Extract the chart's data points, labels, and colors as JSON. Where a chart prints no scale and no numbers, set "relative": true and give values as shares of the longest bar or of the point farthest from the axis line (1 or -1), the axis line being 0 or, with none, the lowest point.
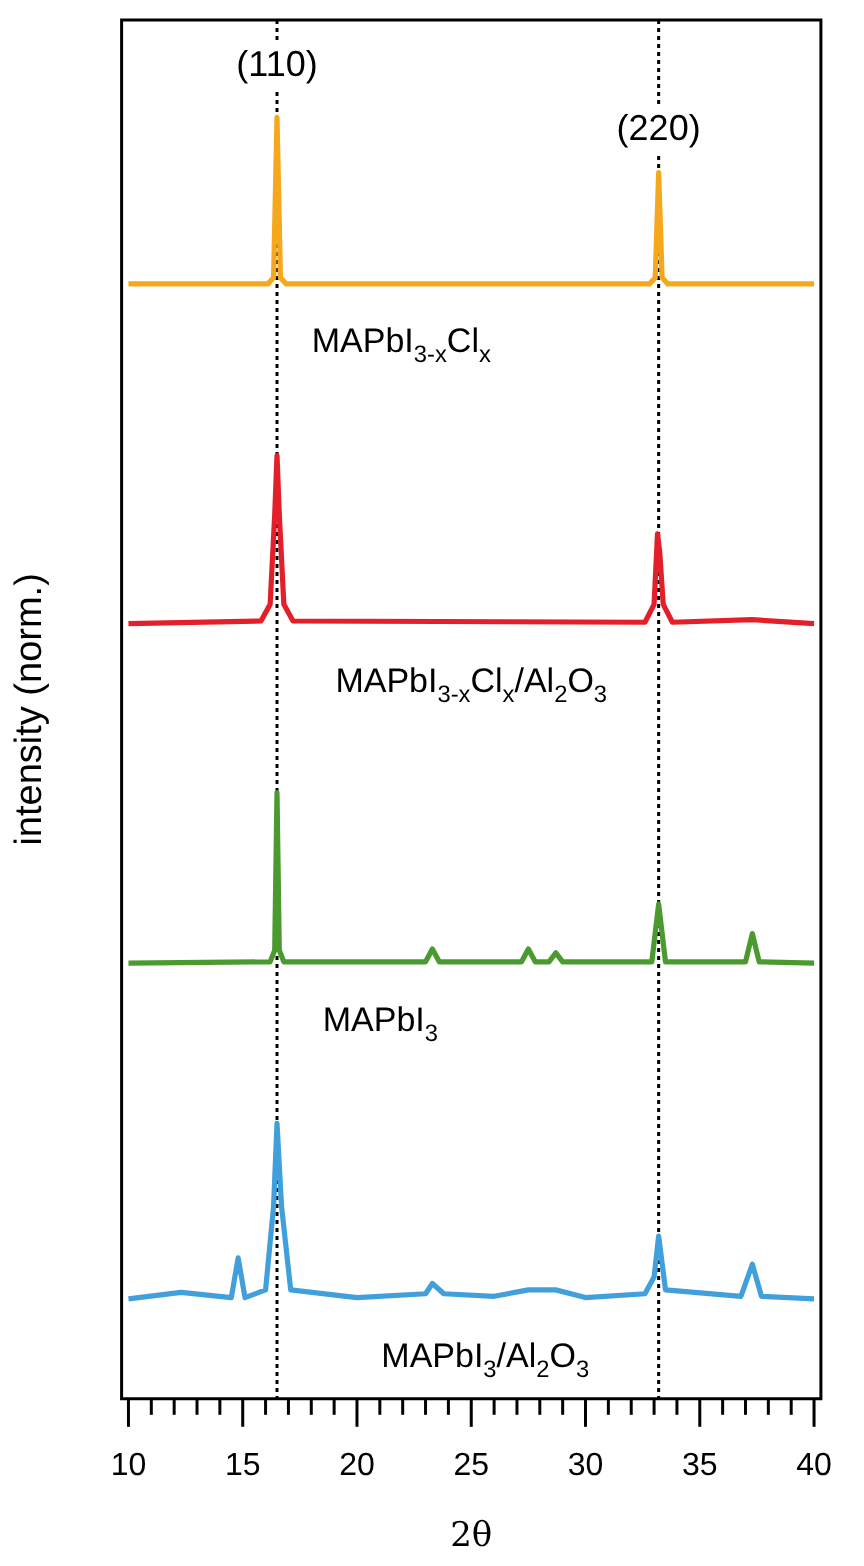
{
  "chart_data": {
    "type": "line",
    "relative": true,
    "xlabel": "2θ",
    "ylabel": "intensity (norm.)",
    "xlim": [
      9.7,
      40.3
    ],
    "xticks": [
      10,
      {
        "value": 11,
        "label": null
      },
      {
        "value": 12,
        "label": null
      },
      {
        "value": 13,
        "label": null
      },
      {
        "value": 14,
        "label": null
      },
      15,
      {
        "value": 16,
        "label": null
      },
      {
        "value": 17,
        "label": null
      },
      {
        "value": 18,
        "label": null
      },
      {
        "value": 19,
        "label": null
      },
      20,
      {
        "value": 21,
        "label": null
      },
      {
        "value": 22,
        "label": null
      },
      {
        "value": 23,
        "label": null
      },
      {
        "value": 24,
        "label": null
      },
      25,
      {
        "value": 26,
        "label": null
      },
      {
        "value": 27,
        "label": null
      },
      {
        "value": 28,
        "label": null
      },
      {
        "value": 29,
        "label": null
      },
      30,
      {
        "value": 31,
        "label": null
      },
      {
        "value": 32,
        "label": null
      },
      {
        "value": 33,
        "label": null
      },
      {
        "value": 34,
        "label": null
      },
      35,
      {
        "value": 36,
        "label": null
      },
      {
        "value": 37,
        "label": null
      },
      {
        "value": 38,
        "label": null
      },
      {
        "value": 39,
        "label": null
      },
      40
    ],
    "series": [
      {
        "name": "MAPbI$_{3-x}$Cl$_{x}$",
        "color": "#f5a81c",
        "x": [
          10,
          16.1,
          16.35,
          16.5,
          16.65,
          16.9,
          32.8,
          33.05,
          33.2,
          33.35,
          33.6,
          40
        ],
        "values": [
          0.87,
          0.87,
          0.875,
          1.0,
          0.875,
          0.87,
          0.87,
          0.875,
          0.957,
          0.875,
          0.87,
          0.87
        ]
      },
      {
        "name": "MAPbI$_{3-x}$Cl$_{x}$/Al$_{2}$O$_{3}$",
        "color": "#e3202a",
        "x": [
          10,
          15.8,
          16.2,
          16.4,
          16.5,
          16.6,
          16.8,
          17.2,
          32.6,
          33.0,
          33.15,
          33.25,
          33.4,
          33.8,
          37.3,
          40
        ],
        "values": [
          0.605,
          0.607,
          0.62,
          0.69,
          0.736,
          0.69,
          0.62,
          0.607,
          0.606,
          0.62,
          0.675,
          0.66,
          0.62,
          0.606,
          0.608,
          0.605
        ]
      },
      {
        "name": "MAPbI$_{3}$",
        "color": "#4a9a2f",
        "x": [
          10,
          16.2,
          16.4,
          16.5,
          16.6,
          16.8,
          23.0,
          23.3,
          23.6,
          27.2,
          27.5,
          27.8,
          28.4,
          28.7,
          29.0,
          32.9,
          33.2,
          33.5,
          37.0,
          37.3,
          37.6,
          40
        ],
        "values": [
          0.34,
          0.341,
          0.35,
          0.473,
          0.35,
          0.341,
          0.341,
          0.351,
          0.341,
          0.341,
          0.351,
          0.341,
          0.341,
          0.348,
          0.341,
          0.341,
          0.386,
          0.341,
          0.341,
          0.363,
          0.341,
          0.34
        ]
      },
      {
        "name": "MAPbI$_{3}$/Al$_{2}$O$_{3}$",
        "color": "#41a0dc",
        "x": [
          10,
          12.3,
          14.5,
          14.8,
          15.1,
          16.0,
          16.35,
          16.5,
          16.7,
          17.1,
          20,
          23.0,
          23.3,
          23.8,
          26,
          27.5,
          28.7,
          30,
          32.6,
          33.0,
          33.2,
          33.5,
          36.8,
          37.3,
          37.7,
          40
        ],
        "values": [
          0.078,
          0.083,
          0.079,
          0.11,
          0.079,
          0.085,
          0.15,
          0.215,
          0.15,
          0.085,
          0.079,
          0.082,
          0.09,
          0.082,
          0.08,
          0.085,
          0.085,
          0.079,
          0.082,
          0.095,
          0.127,
          0.085,
          0.08,
          0.105,
          0.08,
          0.078
        ]
      }
    ],
    "ref_lines": [
      {
        "axis": "x",
        "value": 16.5,
        "color": "#000000",
        "line_style": "dotted"
      },
      {
        "axis": "x",
        "value": 33.2,
        "color": "#000000",
        "line_style": "dotted"
      }
    ],
    "annotations": [
      {
        "text": "(110)",
        "x": 16.5,
        "y": 1.04
      },
      {
        "text": "(220)",
        "x": 33.2,
        "y": 0.99
      }
    ]
  }
}
